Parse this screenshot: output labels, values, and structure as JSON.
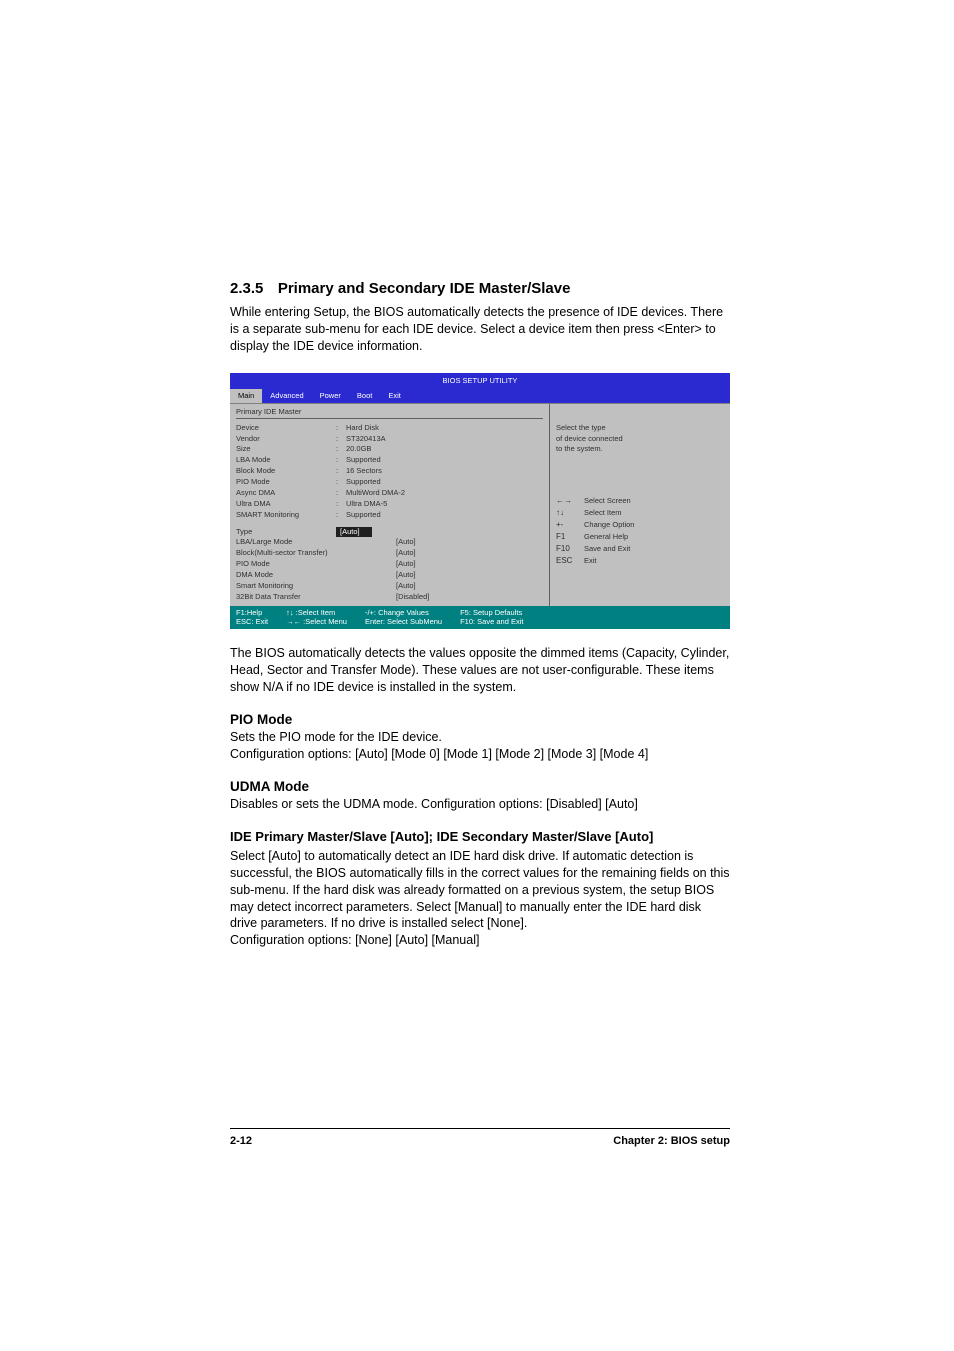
{
  "section": {
    "number": "2.3.5",
    "title": "Primary and Secondary IDE Master/Slave",
    "intro": "While entering Setup, the BIOS automatically detects the presence of IDE devices. There is a separate sub-menu for each IDE device. Select a device item then press <Enter> to display the IDE device information."
  },
  "bios": {
    "util_title": "BIOS SETUP UTILITY",
    "menu_tabs": [
      "Main",
      "Advanced",
      "Power",
      "Boot",
      "Exit"
    ],
    "active_tab_index": 0,
    "left_subtitle": "Primary IDE Master",
    "fields": [
      {
        "label": "Device",
        "sep": ":",
        "val": "Hard Disk"
      },
      {
        "label": "Vendor",
        "sep": ":",
        "val": "ST320413A"
      },
      {
        "label": "Size",
        "sep": ":",
        "val": "20.0GB"
      },
      {
        "label": "LBA Mode",
        "sep": ":",
        "val": "Supported"
      },
      {
        "label": "Block Mode",
        "sep": ":",
        "val": "16 Sectors"
      },
      {
        "label": "PIO Mode",
        "sep": ":",
        "val": "Supported"
      },
      {
        "label": "Async DMA",
        "sep": ":",
        "val": "MultiWord DMA-2"
      },
      {
        "label": "Ultra DMA",
        "sep": ":",
        "val": "Ultra DMA-5"
      },
      {
        "label": "SMART Monitoring",
        "sep": ":",
        "val": "Supported"
      }
    ],
    "type_row": {
      "label": "Type",
      "val": "[Auto]"
    },
    "option_rows": [
      {
        "label": "LBA/Large Mode",
        "val": "[Auto]"
      },
      {
        "label": "Block(Multi-sector Transfer)",
        "val": "[Auto]"
      },
      {
        "label": "PIO Mode",
        "val": "[Auto]"
      },
      {
        "label": "DMA Mode",
        "val": "[Auto]"
      },
      {
        "label": "Smart Monitoring",
        "val": "[Auto]"
      },
      {
        "label": "32Bit Data Transfer",
        "val": "[Disabled]"
      }
    ],
    "help": {
      "line1": "Select the type",
      "line2": "of device connected",
      "line3": "to the system."
    },
    "nav": [
      {
        "key": "←→",
        "label": "Select Screen"
      },
      {
        "key": "↑↓",
        "label": "Select Item"
      },
      {
        "key": "+-",
        "label": "Change Option"
      },
      {
        "key": "F1",
        "label": "General Help"
      },
      {
        "key": "F10",
        "label": "Save and Exit"
      },
      {
        "key": "ESC",
        "label": "Exit"
      }
    ],
    "footer": {
      "f1": "F1:Help",
      "arrows1": "↑↓ :Select Item",
      "pm": "-/+: Change Values",
      "f5": "F5: Setup Defaults",
      "esc": "ESC: Exit",
      "arrows2": "→← :Select Menu",
      "enter": "Enter: Select SubMenu",
      "f10": "F10: Save and Exit"
    },
    "colors": {
      "menu_bg": "#2a2ad0",
      "body_bg": "#c0c0c0",
      "footer_bg": "#008080",
      "highlight_bg": "#202020"
    }
  },
  "post_bios_para": "The BIOS automatically detects the values opposite the dimmed items (Capacity, Cylinder,  Head, Sector and Transfer Mode). These values are not user-configurable. These items show N/A if no IDE device is installed in the system.",
  "pio": {
    "title": "PIO Mode",
    "line1": "Sets the PIO mode for the IDE device.",
    "line2": "Configuration options: [Auto] [Mode 0] [Mode 1] [Mode 2] [Mode 3] [Mode 4]"
  },
  "udma": {
    "title": "UDMA Mode",
    "line1": "Disables or sets the UDMA mode. Configuration options: [Disabled] [Auto]"
  },
  "ide": {
    "title": "IDE Primary Master/Slave [Auto]; IDE Secondary Master/Slave [Auto]",
    "body": "Select [Auto] to automatically detect an IDE hard disk drive. If automatic detection is successful, the BIOS automatically fills in the correct values for the remaining fields on this sub-menu. If the hard disk was already formatted on a previous system, the setup BIOS may detect incorrect parameters. Select [Manual] to manually enter the IDE hard disk drive parameters. If no drive is installed select [None].",
    "config": "Configuration options: [None] [Auto] [Manual]"
  },
  "footer": {
    "page": "2-12",
    "chapter": "Chapter 2: BIOS setup"
  }
}
